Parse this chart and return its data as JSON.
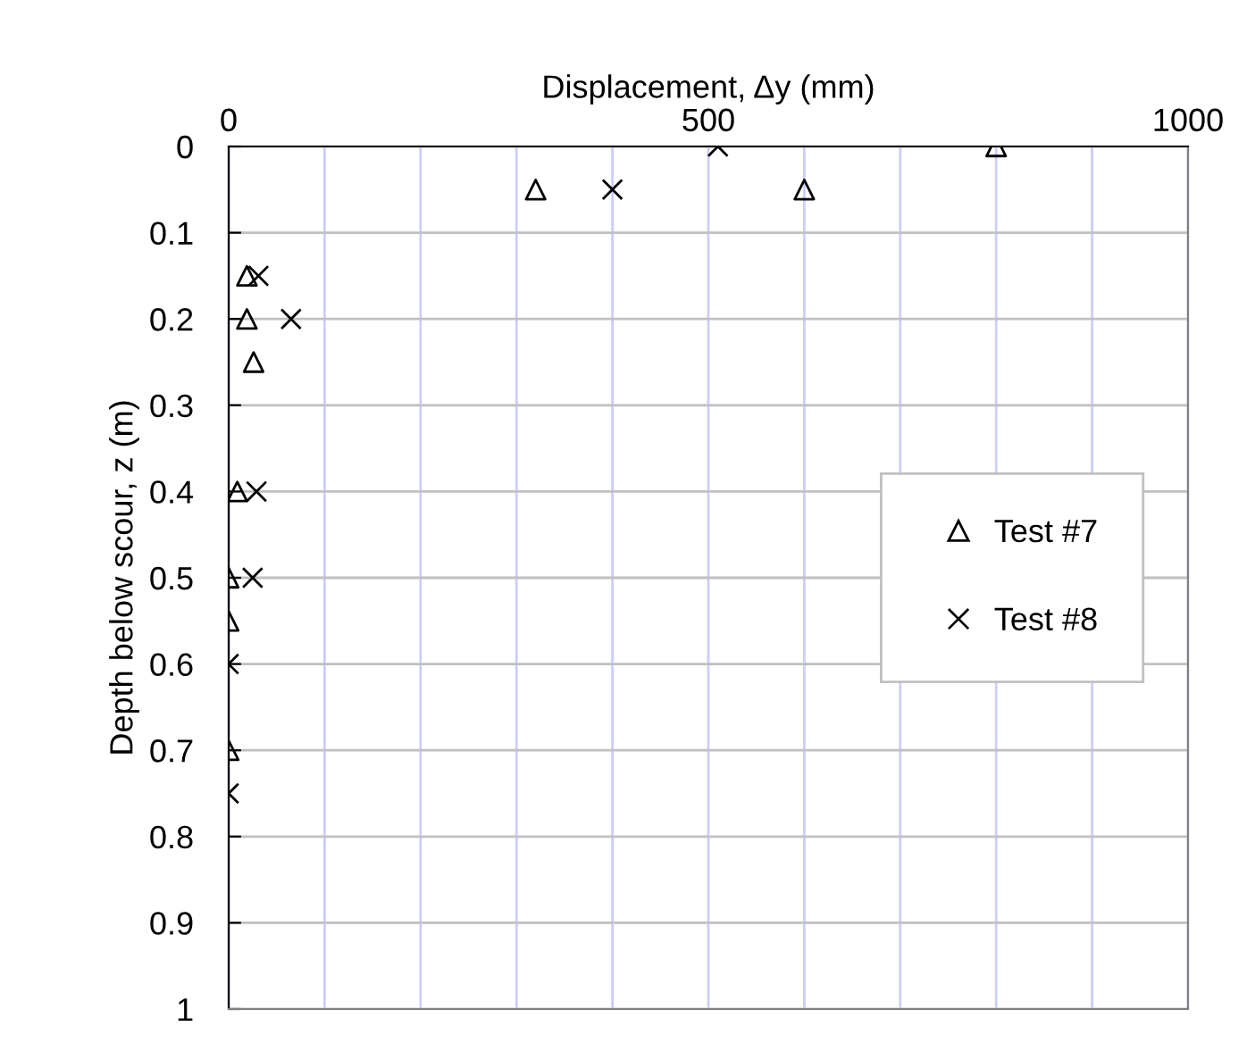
{
  "chart_data": {
    "type": "scatter",
    "xlabel": "Displacement, Δy (mm)",
    "ylabel": "Depth below scour, z (m)",
    "xlim": [
      0,
      1000
    ],
    "xticks": [
      0,
      {
        "value": 100,
        "label": null
      },
      {
        "value": 200,
        "label": null
      },
      {
        "value": 300,
        "label": null
      },
      {
        "value": 400,
        "label": null
      },
      500,
      {
        "value": 600,
        "label": null
      },
      {
        "value": 700,
        "label": null
      },
      {
        "value": 800,
        "label": null
      },
      {
        "value": 900,
        "label": null
      },
      1000
    ],
    "ylim": [
      1,
      0
    ],
    "yticks": [
      0,
      0.1,
      0.2,
      0.3,
      0.4,
      0.5,
      0.6,
      0.7,
      0.8,
      0.9,
      1
    ],
    "grid": true,
    "legend": "right",
    "series": [
      {
        "name": "Test #7",
        "color": "#000000",
        "marker": "triangle",
        "x": [
          800,
          320,
          600,
          19,
          19,
          26,
          9,
          0,
          0,
          0
        ],
        "values": [
          0,
          0.05,
          0.05,
          0.15,
          0.2,
          0.25,
          0.4,
          0.5,
          0.55,
          0.7
        ]
      },
      {
        "name": "Test #8",
        "color": "#000000",
        "marker": "cross",
        "x": [
          510,
          400,
          31,
          65,
          29,
          25,
          0,
          0
        ],
        "values": [
          0,
          0.05,
          0.15,
          0.2,
          0.4,
          0.5,
          0.6,
          0.75
        ]
      }
    ]
  }
}
